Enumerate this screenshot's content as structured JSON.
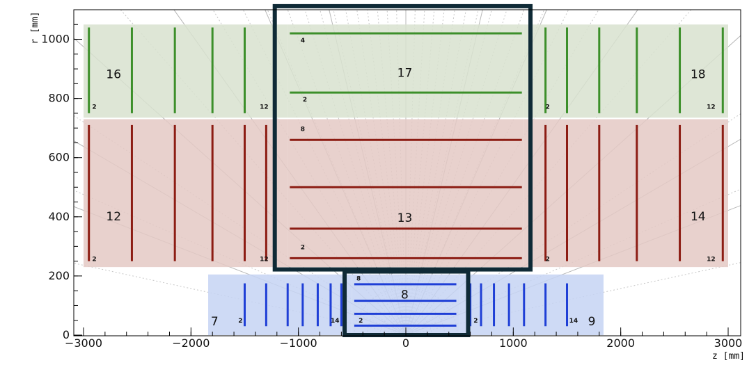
{
  "axes": {
    "x_title": "z  [mm]",
    "y_title": "r  [mm]",
    "x_range": [
      -3000,
      3000
    ],
    "y_range": [
      0,
      1100
    ],
    "x_ticks": [
      {
        "value": -3000,
        "label": "−3000"
      },
      {
        "value": -2000,
        "label": "−2000"
      },
      {
        "value": -1000,
        "label": "−1000"
      },
      {
        "value": 0,
        "label": "0"
      },
      {
        "value": 1000,
        "label": "1000"
      },
      {
        "value": 2000,
        "label": "2000"
      },
      {
        "value": 3000,
        "label": "3000"
      }
    ],
    "y_ticks": [
      {
        "value": 0,
        "label": "0"
      },
      {
        "value": 200,
        "label": "200"
      },
      {
        "value": 400,
        "label": "400"
      },
      {
        "value": 600,
        "label": "600"
      },
      {
        "value": 800,
        "label": "800"
      },
      {
        "value": 1000,
        "label": "1000"
      }
    ]
  },
  "colors": {
    "pixel_fill": "#c6d3f3",
    "pixel_line": "#1f3fd6",
    "short_strip_fill": "#e4c9c4",
    "short_strip_line": "#8c1c13",
    "long_strip_fill": "#d8e2cf",
    "long_strip_line": "#3c8f2a",
    "highlight_box": "#0f2a36",
    "eta_line": "#b8b8b8"
  },
  "volumes": [
    {
      "id": "7",
      "label": "7",
      "color": "pixel",
      "z": [
        -1840,
        -500
      ],
      "r": [
        0,
        205
      ],
      "label_pos": [
        -1780,
        45
      ]
    },
    {
      "id": "8",
      "label": "8",
      "color": "pixel",
      "z": [
        -500,
        500
      ],
      "r": [
        0,
        205
      ],
      "label_pos": [
        -10,
        135
      ]
    },
    {
      "id": "9",
      "label": "9",
      "color": "pixel",
      "z": [
        500,
        1840
      ],
      "r": [
        0,
        205
      ],
      "label_pos": [
        1730,
        45
      ]
    },
    {
      "id": "12",
      "label": "12",
      "color": "short_strip",
      "z": [
        -3000,
        -1100
      ],
      "r": [
        230,
        730
      ],
      "label_pos": [
        -2720,
        400
      ]
    },
    {
      "id": "13",
      "label": "13",
      "color": "short_strip",
      "z": [
        -1100,
        1100
      ],
      "r": [
        230,
        730
      ],
      "label_pos": [
        -10,
        395
      ]
    },
    {
      "id": "14",
      "label": "14",
      "color": "short_strip",
      "z": [
        1100,
        3000
      ],
      "r": [
        230,
        730
      ],
      "label_pos": [
        2720,
        400
      ]
    },
    {
      "id": "16",
      "label": "16",
      "color": "long_strip",
      "z": [
        -3000,
        -1100
      ],
      "r": [
        735,
        1050
      ],
      "label_pos": [
        -2720,
        880
      ]
    },
    {
      "id": "17",
      "label": "17",
      "color": "long_strip",
      "z": [
        -1100,
        1100
      ],
      "r": [
        735,
        1050
      ],
      "label_pos": [
        -10,
        885
      ]
    },
    {
      "id": "18",
      "label": "18",
      "color": "long_strip",
      "z": [
        1100,
        3000
      ],
      "r": [
        735,
        1050
      ],
      "label_pos": [
        2720,
        880
      ]
    }
  ],
  "barrel_layers": [
    {
      "color": "pixel",
      "r": 32,
      "z": [
        -480,
        470
      ]
    },
    {
      "color": "pixel",
      "r": 72,
      "z": [
        -480,
        470
      ]
    },
    {
      "color": "pixel",
      "r": 116,
      "z": [
        -480,
        470
      ]
    },
    {
      "color": "pixel",
      "r": 172,
      "z": [
        -480,
        470
      ]
    },
    {
      "color": "short_strip",
      "r": 260,
      "z": [
        -1080,
        1080
      ]
    },
    {
      "color": "short_strip",
      "r": 360,
      "z": [
        -1080,
        1080
      ]
    },
    {
      "color": "short_strip",
      "r": 500,
      "z": [
        -1080,
        1080
      ]
    },
    {
      "color": "short_strip",
      "r": 660,
      "z": [
        -1080,
        1080
      ]
    },
    {
      "color": "long_strip",
      "r": 820,
      "z": [
        -1080,
        1080
      ]
    },
    {
      "color": "long_strip",
      "r": 1020,
      "z": [
        -1080,
        1080
      ]
    }
  ],
  "endcap_disks": [
    {
      "color": "pixel",
      "z": -1500,
      "r": [
        30,
        175
      ]
    },
    {
      "color": "pixel",
      "z": -1300,
      "r": [
        30,
        175
      ]
    },
    {
      "color": "pixel",
      "z": -1100,
      "r": [
        30,
        175
      ]
    },
    {
      "color": "pixel",
      "z": -960,
      "r": [
        30,
        175
      ]
    },
    {
      "color": "pixel",
      "z": -820,
      "r": [
        30,
        175
      ]
    },
    {
      "color": "pixel",
      "z": -700,
      "r": [
        30,
        175
      ]
    },
    {
      "color": "pixel",
      "z": -600,
      "r": [
        30,
        175
      ]
    },
    {
      "color": "pixel",
      "z": 600,
      "r": [
        30,
        175
      ]
    },
    {
      "color": "pixel",
      "z": 700,
      "r": [
        30,
        175
      ]
    },
    {
      "color": "pixel",
      "z": 820,
      "r": [
        30,
        175
      ]
    },
    {
      "color": "pixel",
      "z": 960,
      "r": [
        30,
        175
      ]
    },
    {
      "color": "pixel",
      "z": 1100,
      "r": [
        30,
        175
      ]
    },
    {
      "color": "pixel",
      "z": 1300,
      "r": [
        30,
        175
      ]
    },
    {
      "color": "pixel",
      "z": 1500,
      "r": [
        30,
        175
      ]
    },
    {
      "color": "short_strip",
      "z": -2950,
      "r": [
        250,
        710
      ]
    },
    {
      "color": "short_strip",
      "z": -2550,
      "r": [
        250,
        710
      ]
    },
    {
      "color": "short_strip",
      "z": -2150,
      "r": [
        250,
        710
      ]
    },
    {
      "color": "short_strip",
      "z": -1800,
      "r": [
        250,
        710
      ]
    },
    {
      "color": "short_strip",
      "z": -1500,
      "r": [
        250,
        710
      ]
    },
    {
      "color": "short_strip",
      "z": -1300,
      "r": [
        250,
        710
      ]
    },
    {
      "color": "short_strip",
      "z": 1300,
      "r": [
        250,
        710
      ]
    },
    {
      "color": "short_strip",
      "z": 1500,
      "r": [
        250,
        710
      ]
    },
    {
      "color": "short_strip",
      "z": 1800,
      "r": [
        250,
        710
      ]
    },
    {
      "color": "short_strip",
      "z": 2150,
      "r": [
        250,
        710
      ]
    },
    {
      "color": "short_strip",
      "z": 2550,
      "r": [
        250,
        710
      ]
    },
    {
      "color": "short_strip",
      "z": 2950,
      "r": [
        250,
        710
      ]
    },
    {
      "color": "long_strip",
      "z": -2950,
      "r": [
        750,
        1040
      ]
    },
    {
      "color": "long_strip",
      "z": -2550,
      "r": [
        750,
        1040
      ]
    },
    {
      "color": "long_strip",
      "z": -2150,
      "r": [
        750,
        1040
      ]
    },
    {
      "color": "long_strip",
      "z": -1800,
      "r": [
        750,
        1040
      ]
    },
    {
      "color": "long_strip",
      "z": -1500,
      "r": [
        750,
        1040
      ]
    },
    {
      "color": "long_strip",
      "z": 1300,
      "r": [
        750,
        1040
      ]
    },
    {
      "color": "long_strip",
      "z": 1500,
      "r": [
        750,
        1040
      ]
    },
    {
      "color": "long_strip",
      "z": 1800,
      "r": [
        750,
        1040
      ]
    },
    {
      "color": "long_strip",
      "z": 2150,
      "r": [
        750,
        1040
      ]
    },
    {
      "color": "long_strip",
      "z": 2550,
      "r": [
        750,
        1040
      ]
    },
    {
      "color": "long_strip",
      "z": 2950,
      "r": [
        750,
        1040
      ]
    }
  ],
  "layer_labels": [
    {
      "text": "4",
      "z": -980,
      "r": 990
    },
    {
      "text": "2",
      "z": -960,
      "r": 790
    },
    {
      "text": "8",
      "z": -980,
      "r": 690
    },
    {
      "text": "2",
      "z": -980,
      "r": 290
    },
    {
      "text": "2",
      "z": -2920,
      "r": 765
    },
    {
      "text": "12",
      "z": -1360,
      "r": 765
    },
    {
      "text": "2",
      "z": 1300,
      "r": 765
    },
    {
      "text": "12",
      "z": 2800,
      "r": 765
    },
    {
      "text": "2",
      "z": -2920,
      "r": 250
    },
    {
      "text": "12",
      "z": -1360,
      "r": 250
    },
    {
      "text": "2",
      "z": 1300,
      "r": 250
    },
    {
      "text": "12",
      "z": 2800,
      "r": 250
    },
    {
      "text": "8",
      "z": -460,
      "r": 185
    },
    {
      "text": "2",
      "z": -440,
      "r": 42
    },
    {
      "text": "2",
      "z": -1560,
      "r": 42
    },
    {
      "text": "14",
      "z": -700,
      "r": 42
    },
    {
      "text": "2",
      "z": 630,
      "r": 42
    },
    {
      "text": "14",
      "z": 1520,
      "r": 42
    }
  ],
  "highlight_boxes": [
    {
      "name": "strip-barrel-highlight",
      "z": [
        -1220,
        1160
      ],
      "r": [
        222,
        1112
      ]
    },
    {
      "name": "pixel-barrel-highlight",
      "z": [
        -570,
        580
      ],
      "r": [
        0,
        215
      ]
    }
  ],
  "eta_lines": {
    "solid_thetas_deg": [
      8,
      12,
      18,
      27,
      40,
      57,
      90,
      123,
      140,
      153,
      162,
      168,
      172
    ],
    "dotted_count": 40
  }
}
